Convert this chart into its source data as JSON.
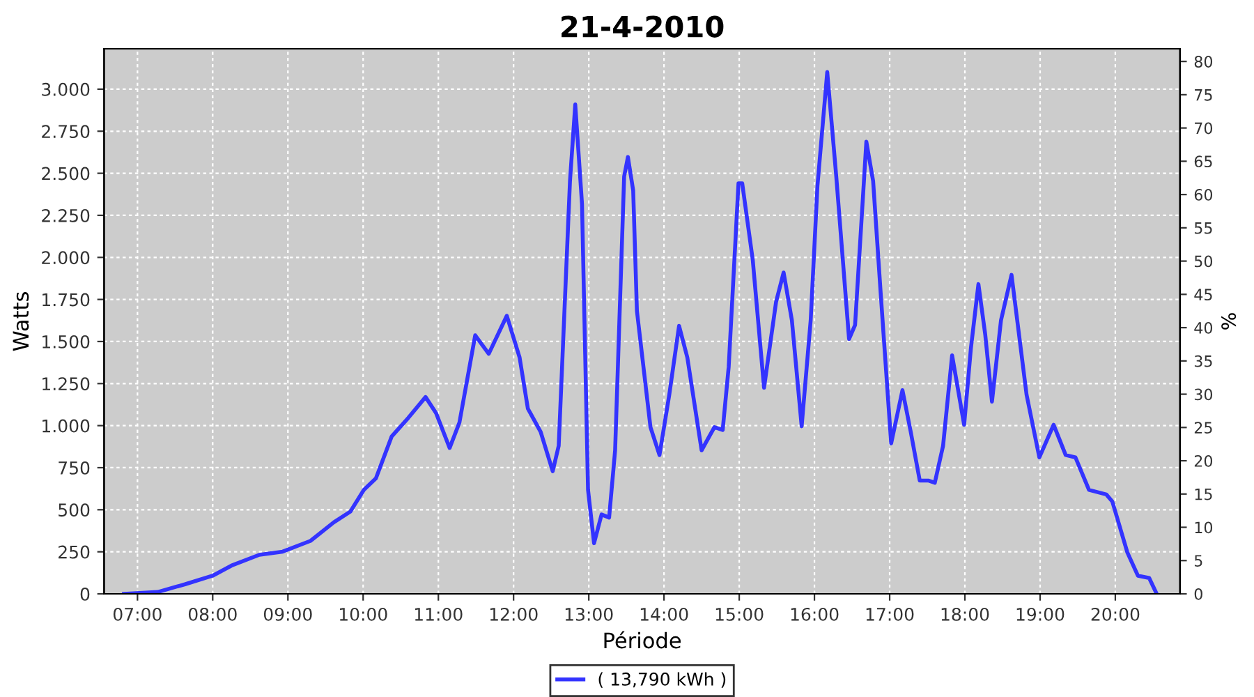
{
  "chart_data": {
    "type": "line",
    "title": "21-4-2010",
    "xlabel": "Période",
    "ylabel": "Watts",
    "y2label": "%",
    "xlim": [
      6.556,
      20.86
    ],
    "ylim": [
      0,
      3240
    ],
    "y2lim": [
      0,
      81.9
    ],
    "xticks": [
      {
        "value": 7,
        "label": "07:00"
      },
      {
        "value": 8,
        "label": "08:00"
      },
      {
        "value": 9,
        "label": "09:00"
      },
      {
        "value": 10,
        "label": "10:00"
      },
      {
        "value": 11,
        "label": "11:00"
      },
      {
        "value": 12,
        "label": "12:00"
      },
      {
        "value": 13,
        "label": "13:00"
      },
      {
        "value": 14,
        "label": "14:00"
      },
      {
        "value": 15,
        "label": "15:00"
      },
      {
        "value": 16,
        "label": "16:00"
      },
      {
        "value": 17,
        "label": "17:00"
      },
      {
        "value": 18,
        "label": "18:00"
      },
      {
        "value": 19,
        "label": "19:00"
      },
      {
        "value": 20,
        "label": "20:00"
      }
    ],
    "yticks": [
      0,
      250,
      500,
      750,
      {
        "value": 1000,
        "label": "1.000"
      },
      {
        "value": 1250,
        "label": "1.250"
      },
      {
        "value": 1500,
        "label": "1.500"
      },
      {
        "value": 1750,
        "label": "1.750"
      },
      {
        "value": 2000,
        "label": "2.000"
      },
      {
        "value": 2250,
        "label": "2.250"
      },
      {
        "value": 2500,
        "label": "2.500"
      },
      {
        "value": 2750,
        "label": "2.750"
      },
      {
        "value": 3000,
        "label": "3.000"
      }
    ],
    "y2ticks": [
      0,
      5,
      10,
      15,
      20,
      25,
      30,
      35,
      40,
      45,
      50,
      55,
      60,
      65,
      70,
      75,
      80
    ],
    "grid": true,
    "legend": "bottom",
    "marker": "none",
    "line_style": "solid",
    "series": [
      {
        "name": "( 13,790 kWh )",
        "color": "#3333ff",
        "x": [
          6.82,
          7.27,
          7.64,
          8.0,
          8.25,
          8.62,
          8.93,
          9.3,
          9.61,
          9.83,
          10.01,
          10.17,
          10.38,
          10.6,
          10.83,
          10.97,
          11.15,
          11.28,
          11.49,
          11.67,
          11.91,
          12.08,
          12.19,
          12.36,
          12.52,
          12.6,
          12.75,
          12.82,
          12.91,
          12.99,
          13.07,
          13.17,
          13.27,
          13.35,
          13.47,
          13.52,
          13.59,
          13.64,
          13.82,
          13.94,
          14.07,
          14.2,
          14.31,
          14.5,
          14.67,
          14.78,
          14.86,
          14.99,
          15.04,
          15.18,
          15.33,
          15.49,
          15.59,
          15.7,
          15.83,
          15.95,
          16.04,
          16.17,
          16.29,
          16.46,
          16.54,
          16.69,
          16.78,
          16.88,
          17.02,
          17.17,
          17.28,
          17.4,
          17.52,
          17.6,
          17.71,
          17.83,
          17.99,
          18.08,
          18.18,
          18.27,
          18.36,
          18.48,
          18.62,
          18.82,
          18.99,
          19.18,
          19.34,
          19.47,
          19.65,
          19.88,
          19.96,
          20.16,
          20.3,
          20.45,
          20.55
        ],
        "values": [
          0,
          11,
          58,
          108,
          168,
          232,
          251,
          315,
          425,
          489,
          618,
          687,
          936,
          1046,
          1170,
          1074,
          867,
          1018,
          1537,
          1427,
          1653,
          1405,
          1101,
          963,
          729,
          880,
          2454,
          2909,
          2316,
          618,
          301,
          472,
          453,
          853,
          2481,
          2597,
          2398,
          1681,
          991,
          825,
          1184,
          1593,
          1405,
          853,
          991,
          974,
          1350,
          2440,
          2440,
          1984,
          1225,
          1736,
          1910,
          1626,
          996,
          1626,
          2426,
          3102,
          2481,
          1515,
          1598,
          2688,
          2454,
          1791,
          894,
          1211,
          963,
          673,
          673,
          660,
          880,
          1418,
          1005,
          1460,
          1841,
          1543,
          1143,
          1626,
          1896,
          1184,
          811,
          1005,
          825,
          811,
          618,
          591,
          549,
          246,
          108,
          94,
          0
        ]
      }
    ]
  }
}
